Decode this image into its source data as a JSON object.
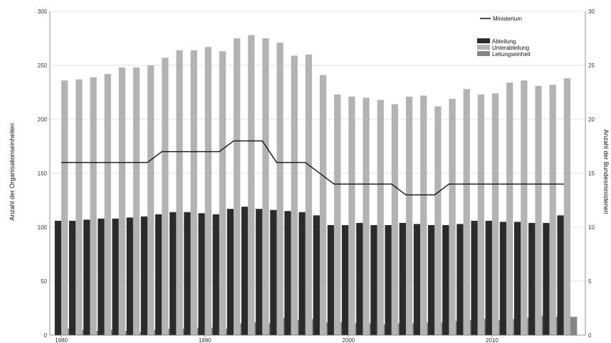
{
  "chart_data": {
    "type": "bar",
    "x": [
      1980,
      1981,
      1982,
      1983,
      1984,
      1985,
      1986,
      1987,
      1988,
      1989,
      1990,
      1991,
      1992,
      1993,
      1994,
      1995,
      1996,
      1997,
      1998,
      1999,
      2000,
      2001,
      2002,
      2003,
      2004,
      2005,
      2006,
      2007,
      2008,
      2009,
      2010,
      2011,
      2012,
      2013,
      2014,
      2015
    ],
    "x_ticks": [
      "1980",
      "1990",
      "2000",
      "2010"
    ],
    "xlim": [
      1979.2,
      2016.5
    ],
    "ylabel": "Anzahl der Organisationseinheiten",
    "ylabel_right": "Anzahl der Bundesministerien",
    "ylim": [
      0,
      300
    ],
    "ylim_right": [
      0,
      30
    ],
    "y_ticks": [
      "0",
      "50",
      "100",
      "150",
      "200",
      "250",
      "300"
    ],
    "y_ticks_right": [
      "0",
      "5",
      "10",
      "15",
      "20",
      "25",
      "30"
    ],
    "grid": "horizontal",
    "series": [
      {
        "name": "Abteilung",
        "kind": "bar",
        "axis": "left",
        "color": "#2b2b2b",
        "values": [
          106,
          106,
          107,
          108,
          108,
          109,
          110,
          112,
          114,
          114,
          113,
          112,
          117,
          119,
          117,
          116,
          115,
          114,
          111,
          102,
          102,
          104,
          102,
          102,
          104,
          103,
          102,
          102,
          103,
          106,
          106,
          105,
          105,
          104,
          104,
          111
        ]
      },
      {
        "name": "Unterabteilung",
        "kind": "bar",
        "axis": "left",
        "color": "#b3b3b3",
        "values": [
          236,
          237,
          239,
          242,
          248,
          248,
          250,
          257,
          264,
          264,
          267,
          263,
          275,
          278,
          275,
          271,
          259,
          260,
          241,
          223,
          221,
          220,
          218,
          214,
          221,
          222,
          212,
          219,
          228,
          223,
          224,
          234,
          236,
          231,
          232,
          238
        ]
      },
      {
        "name": "Leitungseinheit",
        "kind": "bar",
        "axis": "left",
        "color": "#858585",
        "values": [
          6,
          5,
          4,
          5,
          4,
          3,
          5,
          6,
          6,
          7,
          7,
          6,
          11,
          12,
          11,
          16,
          14,
          15,
          12,
          12,
          11,
          11,
          10,
          11,
          11,
          12,
          12,
          13,
          14,
          15,
          14,
          15,
          16,
          18,
          17,
          17
        ]
      },
      {
        "name": "Ministerium",
        "kind": "line",
        "axis": "right",
        "color": "#111111",
        "values": [
          16,
          16,
          16,
          16,
          16,
          16,
          16,
          17,
          17,
          17,
          17,
          17,
          18,
          18,
          18,
          16,
          16,
          16,
          15,
          14,
          14,
          14,
          14,
          14,
          13,
          13,
          13,
          14,
          14,
          14,
          14,
          14,
          14,
          14,
          14,
          14
        ]
      }
    ],
    "legend_line": "top-right",
    "legend_bars": "top-right"
  }
}
